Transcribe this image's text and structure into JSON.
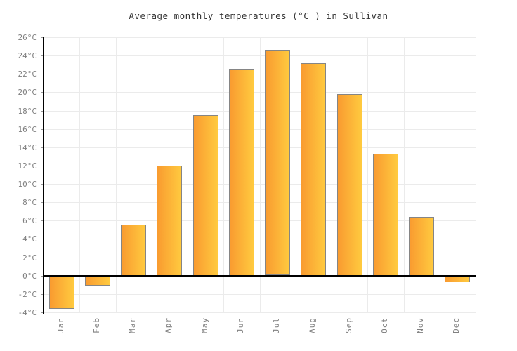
{
  "chart_data": {
    "type": "bar",
    "title": "Average monthly temperatures (°C ) in Sullivan",
    "categories": [
      "Jan",
      "Feb",
      "Mar",
      "Apr",
      "May",
      "Jun",
      "Jul",
      "Aug",
      "Sep",
      "Oct",
      "Nov",
      "Dec"
    ],
    "values": [
      -3.6,
      -1.1,
      5.6,
      12.0,
      17.5,
      22.5,
      24.6,
      23.2,
      19.8,
      13.3,
      6.4,
      -0.7
    ],
    "xlabel": "",
    "ylabel": "",
    "ylim": [
      -4,
      26
    ],
    "ytick_step": 2,
    "ytick_labels": [
      "26°C",
      "24°C",
      "22°C",
      "20°C",
      "18°C",
      "16°C",
      "14°C",
      "12°C",
      "10°C",
      "8°C",
      "6°C",
      "4°C",
      "2°C",
      "0°C",
      "-2°C",
      "-4°C"
    ],
    "grid": true,
    "legend": "none",
    "colors": {
      "bar_gradient_left": "#F99B30",
      "bar_gradient_right": "#FFCA3F",
      "bar_border": "#858585",
      "gridline": "#ebebeb",
      "axis": "#000000",
      "zero_line": "#000000",
      "tick_label": "#808080",
      "title_text": "#333333",
      "background": "#ffffff"
    }
  }
}
